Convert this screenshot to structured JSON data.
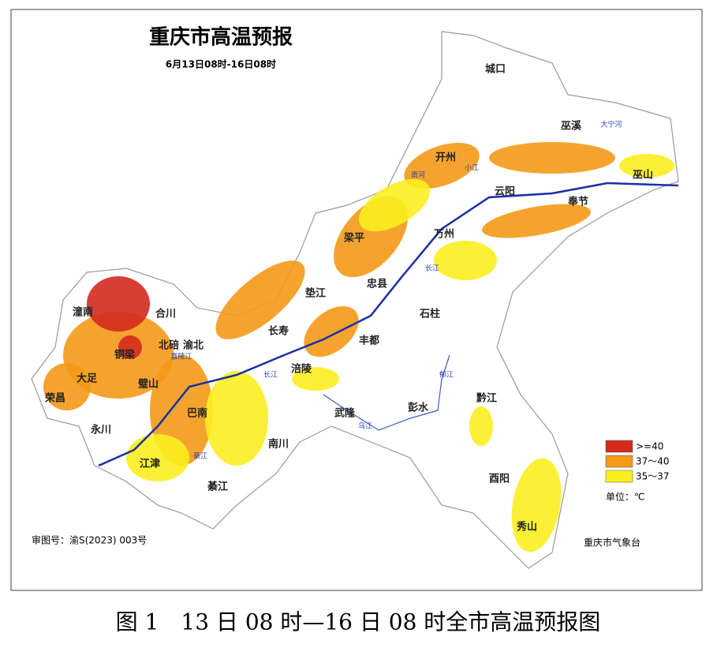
{
  "title": "重庆市高温预报",
  "subtitle": "6月13日08时-16日08时",
  "districts": [
    "城口",
    "巫溪",
    "巫山",
    "开州",
    "云阳",
    "奉节",
    "万州",
    "梁平",
    "忠县",
    "石柱",
    "垫江",
    "丰都",
    "长寿",
    "涪陵",
    "渝北",
    "北碚",
    "合川",
    "潼南",
    "铜梁",
    "大足",
    "荣昌",
    "璧山",
    "永川",
    "江津",
    "巴南",
    "南川",
    "綦江",
    "武隆",
    "彭水",
    "黔江",
    "酉阳",
    "秀山"
  ],
  "rivers": [
    "长江",
    "长江",
    "乌江",
    "小江",
    "南河",
    "大宁河",
    "綦江",
    "郁江",
    "嘉陵江"
  ],
  "legend": {
    "items": [
      {
        "label": ">=40",
        "color": "#d42a1e"
      },
      {
        "label": "37～40",
        "color": "#f39a17"
      },
      {
        "label": "35～37",
        "color": "#fbee1f"
      }
    ],
    "unit": "单位：℃"
  },
  "approval": "审图号：渝S(2023) 003号",
  "agency": "重庆市气象台",
  "caption": "图 1　13 日 08 时—16 日 08 时全市高温预报图"
}
